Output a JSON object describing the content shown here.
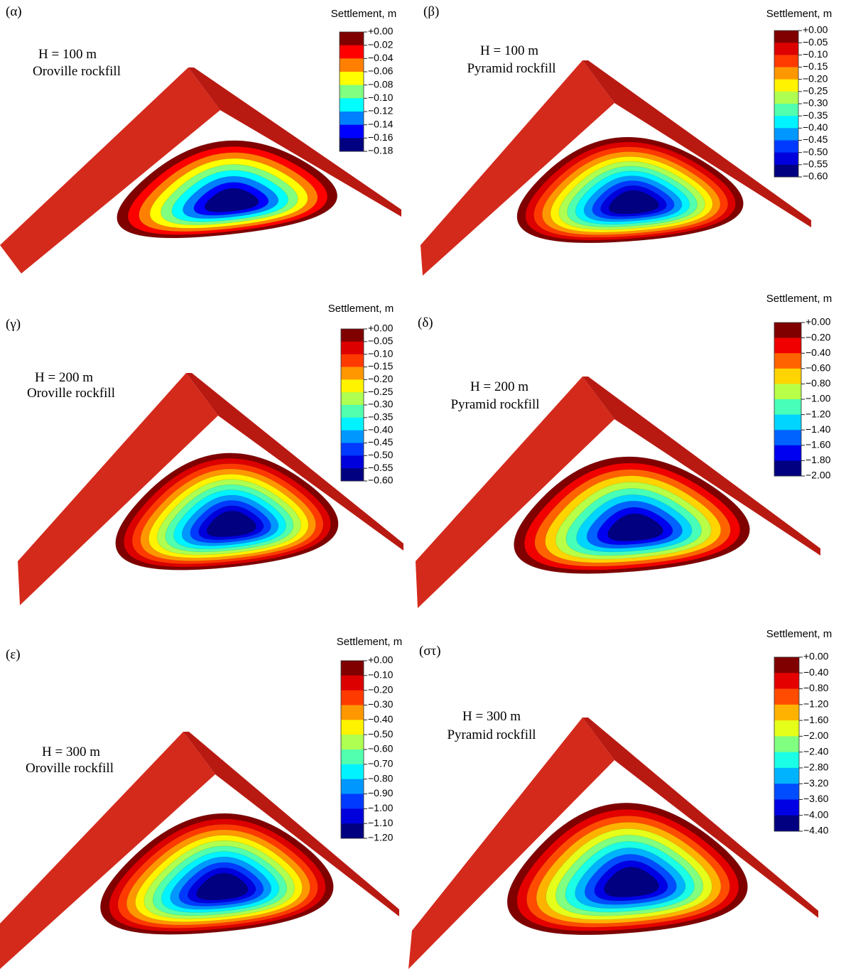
{
  "panels": [
    {
      "label": "(α)",
      "height": "H = 100 m",
      "material": "Oroville rockfill",
      "legend_title": "Settlement, m",
      "legend_ticks": [
        "+0.00",
        "−0.02",
        "−0.04",
        "−0.06",
        "−0.08",
        "−0.10",
        "−0.12",
        "−0.14",
        "−0.16",
        "−0.18"
      ]
    },
    {
      "label": "(β)",
      "height": "H = 100 m",
      "material": "Pyramid rockfill",
      "legend_title": "Settlement, m",
      "legend_ticks": [
        "+0.00",
        "−0.05",
        "−0.10",
        "−0.15",
        "−0.20",
        "−0.25",
        "−0.30",
        "−0.35",
        "−0.40",
        "−0.45",
        "−0.50",
        "−0.55",
        "−0.60"
      ]
    },
    {
      "label": "(γ)",
      "height": "H = 200 m",
      "material": "Oroville rockfill",
      "legend_title": "Settlement, m",
      "legend_ticks": [
        "+0.00",
        "−0.05",
        "−0.10",
        "−0.15",
        "−0.20",
        "−0.25",
        "−0.30",
        "−0.35",
        "−0.40",
        "−0.45",
        "−0.50",
        "−0.55",
        "−0.60"
      ]
    },
    {
      "label": "(δ)",
      "height": "H = 200 m",
      "material": "Pyramid rockfill",
      "legend_title": "Settlement, m",
      "legend_ticks": [
        "+0.00",
        "−0.20",
        "−0.40",
        "−0.60",
        "−0.80",
        "−1.00",
        "−1.20",
        "−1.40",
        "−1.60",
        "−1.80",
        "−2.00"
      ]
    },
    {
      "label": "(ε)",
      "height": "H = 300 m",
      "material": "Oroville rockfill",
      "legend_title": "Settlement, m",
      "legend_ticks": [
        "+0.00",
        "−0.10",
        "−0.20",
        "−0.30",
        "−0.40",
        "−0.50",
        "−0.60",
        "−0.70",
        "−0.80",
        "−0.90",
        "−1.00",
        "−1.10",
        "−1.20"
      ]
    },
    {
      "label": "(στ)",
      "height": "H = 300 m",
      "material": "Pyramid rockfill",
      "legend_title": "Settlement, m",
      "legend_ticks": [
        "+0.00",
        "−0.40",
        "−0.80",
        "−1.20",
        "−1.60",
        "−2.00",
        "−2.40",
        "−2.80",
        "−3.20",
        "−3.60",
        "−4.00",
        "−4.40"
      ]
    }
  ]
}
